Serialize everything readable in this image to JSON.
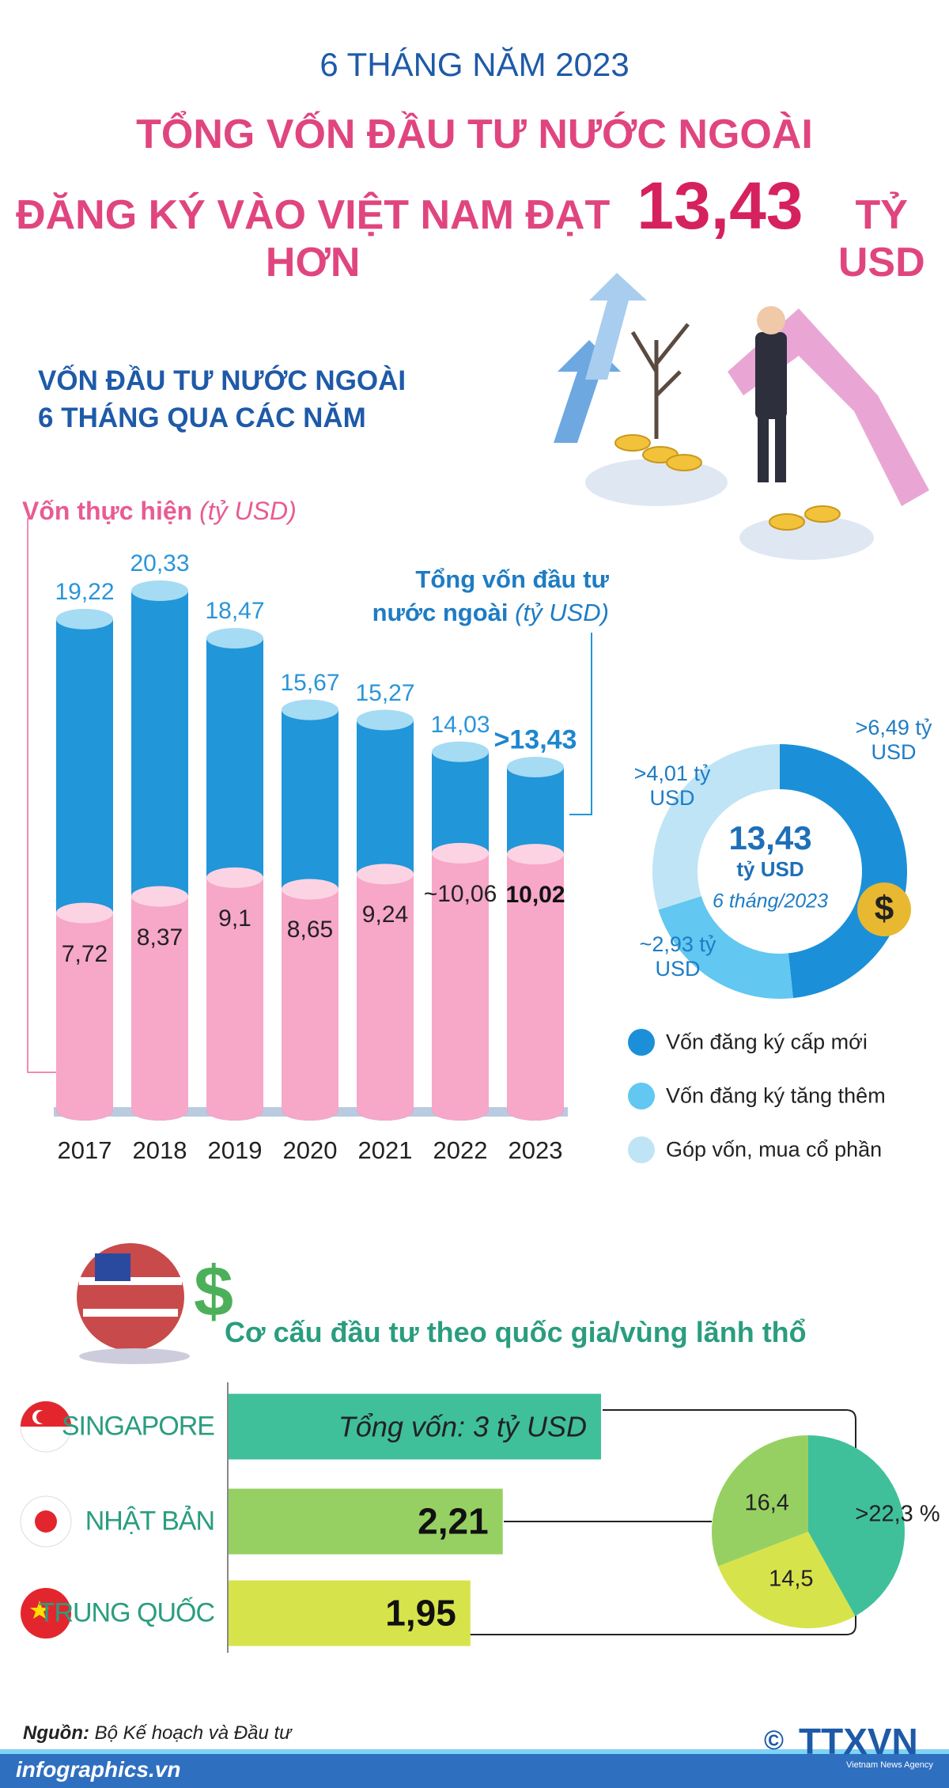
{
  "header": {
    "kicker": "6 THÁNG NĂM 2023",
    "title_line1": "TỔNG VỐN ĐẦU TƯ NƯỚC NGOÀI",
    "title_line2": "ĐĂNG KÝ VÀO VIỆT NAM ĐẠT HƠN",
    "highlight": "13,43",
    "highlight_unit": "TỶ USD"
  },
  "chart_data": [
    {
      "type": "cylinder-bar",
      "title": "VỐN ĐẦU TƯ NƯỚC NGOÀI 6 THÁNG QUA CÁC NĂM",
      "categories": [
        "2017",
        "2018",
        "2019",
        "2020",
        "2021",
        "2022",
        "2023"
      ],
      "series": [
        {
          "name": "Tổng vốn đầu tư nước ngoài",
          "unit": "(tỷ USD)",
          "color": "#2196d8",
          "top_color": "#a6dbf4",
          "values": [
            19.22,
            20.33,
            18.47,
            15.67,
            15.27,
            14.03,
            13.43
          ],
          "value_labels": [
            "19,22",
            "20,33",
            "18,47",
            "15,67",
            "15,27",
            "14,03",
            ">13,43"
          ]
        },
        {
          "name": "Vốn thực hiện",
          "unit": "(tỷ USD)",
          "color": "#f7a7c8",
          "top_color": "#fcd3e3",
          "values": [
            7.72,
            8.37,
            9.1,
            8.65,
            9.24,
            10.06,
            10.02
          ],
          "value_labels": [
            "7,72",
            "8,37",
            "9,1",
            "8,65",
            "9,24",
            "~10,06",
            "10,02"
          ]
        }
      ]
    },
    {
      "type": "donut",
      "categories": [
        "Vốn đăng ký cấp mới",
        "Vốn đăng ký tăng thêm",
        "Góp vốn, mua cổ phần"
      ],
      "values": [
        6.49,
        2.93,
        4.01
      ],
      "value_labels": [
        ">6,49 tỷ USD",
        "~2,93 tỷ USD",
        ">4,01 tỷ USD"
      ],
      "colors": [
        "#1b90d8",
        "#62c7f1",
        "#bfe4f6"
      ],
      "center_label": "13,43",
      "center_unit": "tỷ USD",
      "center_note": "6 tháng/2023"
    },
    {
      "type": "hbar",
      "title": "Cơ cấu đầu tư theo quốc gia/vùng lãnh thổ",
      "categories": [
        "SINGAPORE",
        "NHẬT BẢN",
        "TRUNG QUỐC"
      ],
      "values": [
        3,
        2.21,
        1.95
      ],
      "value_labels": [
        "Tổng vốn: 3 tỷ USD",
        "2,21",
        "1,95"
      ],
      "colors": [
        "#3fc09a",
        "#97d062",
        "#d7e34b"
      ]
    },
    {
      "type": "pie",
      "values": [
        22.3,
        16.4,
        14.5
      ],
      "value_labels": [
        ">22,3 %",
        "16,4",
        "14,5"
      ],
      "colors": [
        "#3fc09a",
        "#97d062",
        "#d7e34b"
      ]
    }
  ],
  "footer": {
    "source_label": "Nguồn:",
    "source": "Bộ Kế hoạch và Đầu tư",
    "website": "infographics.vn",
    "copyright": "©",
    "agency": "TTXVN",
    "agency_full": "Vietnam News Agency"
  }
}
